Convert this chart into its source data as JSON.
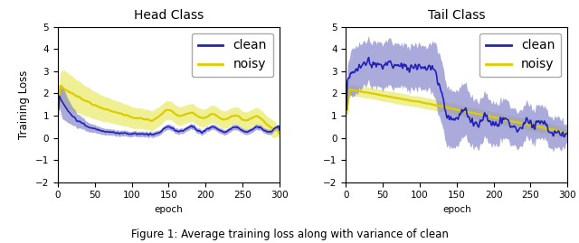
{
  "title_left": "Head Class",
  "title_right": "Tail Class",
  "xlabel": "epoch",
  "ylabel": "Training Loss",
  "xlim": [
    0,
    300
  ],
  "ylim": [
    -2,
    5
  ],
  "yticks": [
    -2,
    -1,
    0,
    1,
    2,
    3,
    4,
    5
  ],
  "xticks": [
    0,
    50,
    100,
    150,
    200,
    250,
    300
  ],
  "clean_color": "#2222bb",
  "noisy_color": "#ddcc00",
  "clean_fill_color": "#8888cc",
  "noisy_fill_color": "#eeee88",
  "legend_fontsize": 10,
  "caption": "Figure 1: Average training loss along with variance of clean",
  "figsize": [
    6.4,
    2.69
  ],
  "dpi": 100,
  "seed": 0
}
